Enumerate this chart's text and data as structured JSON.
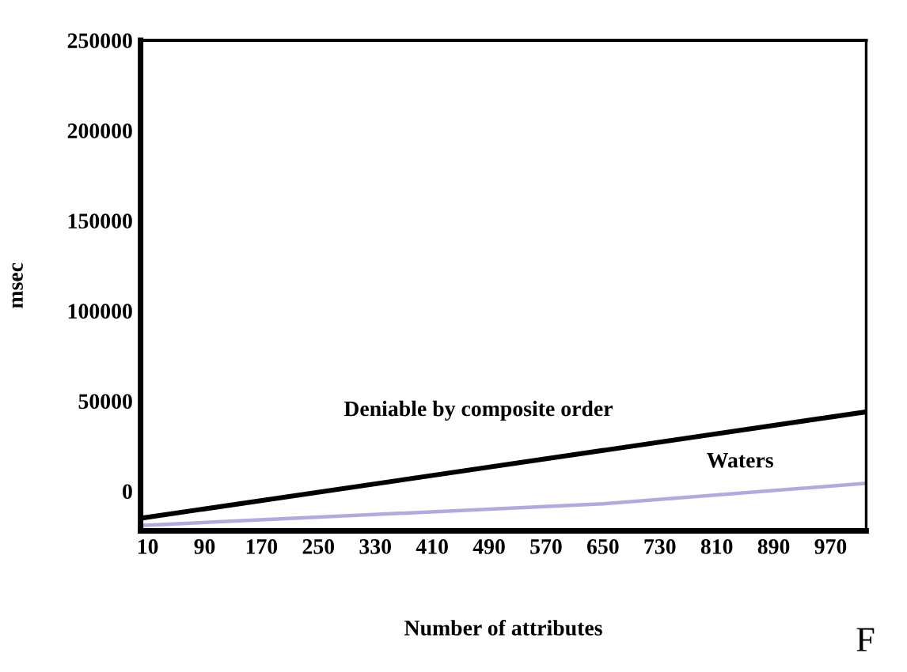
{
  "chart_data": {
    "type": "line",
    "xlabel": "Number of attributes",
    "ylabel": "msec",
    "xlim": [
      0,
      1020
    ],
    "xticks": [
      10,
      90,
      170,
      250,
      330,
      410,
      490,
      570,
      650,
      730,
      810,
      890,
      970
    ],
    "ylim": [
      -22000,
      250000
    ],
    "yticks": [
      0,
      50000,
      100000,
      150000,
      200000,
      250000
    ],
    "series": [
      {
        "name": "Deniable by composite order",
        "color": "#000000",
        "x": [
          0,
          1020
        ],
        "values": [
          -15000,
          44000
        ]
      },
      {
        "name": "Waters",
        "color": "#b4a8e0",
        "x": [
          0,
          650,
          1020
        ],
        "values": [
          -19000,
          -7000,
          4400
        ]
      }
    ],
    "grid": false,
    "legend": false,
    "marker": "none",
    "line_style": "solid",
    "annotations": [
      "F"
    ]
  }
}
